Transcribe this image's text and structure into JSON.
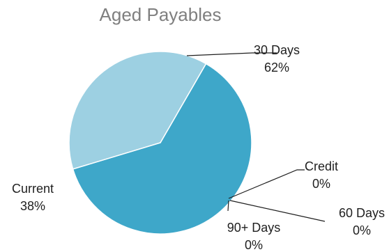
{
  "chart_data": {
    "type": "pie",
    "title": "Aged Payables",
    "categories": [
      "30 Days",
      "Credit",
      "60 Days",
      "90+ Days",
      "Current"
    ],
    "values": [
      62,
      0,
      0,
      0,
      38
    ],
    "value_labels": [
      "62%",
      "0%",
      "0%",
      "0%",
      "38%"
    ],
    "colors": [
      "#3ea7c9",
      "#3ea7c9",
      "#3ea7c9",
      "#7fc3db",
      "#9dd0e2"
    ],
    "legend": "none",
    "data_labels": "outside with leader lines"
  }
}
